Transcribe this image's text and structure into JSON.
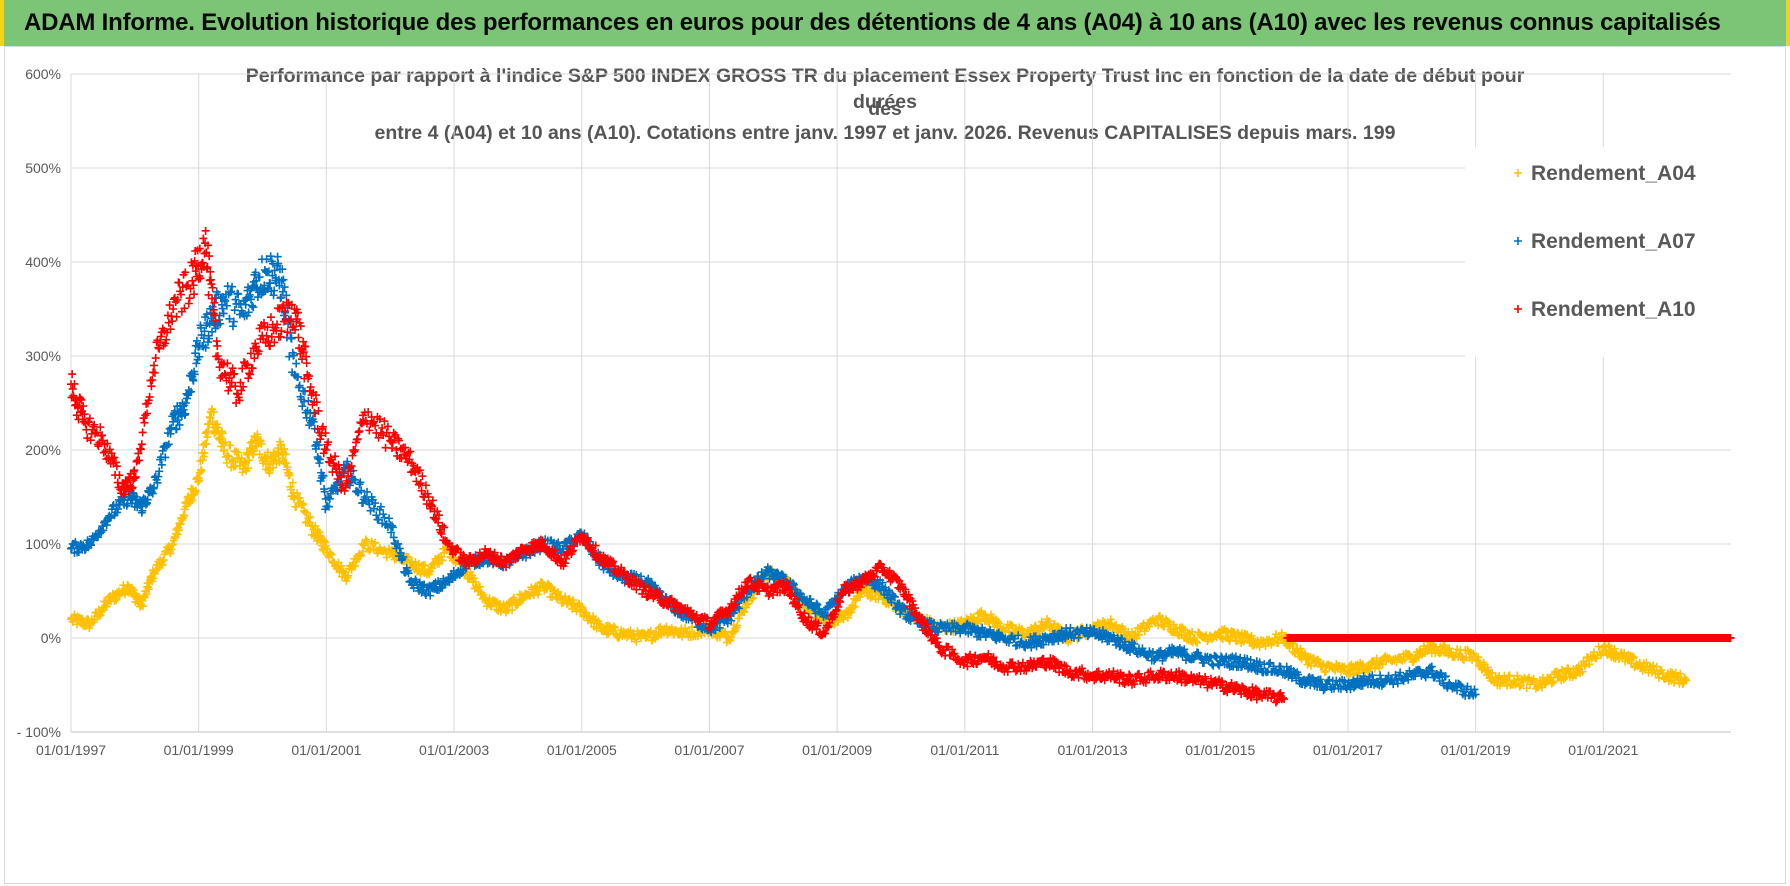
{
  "banner": {
    "text": "ADAM Informe. Evolution historique des performances en euros pour des détentions de 4 ans (A04) à 10 ans (A10) avec les revenus connus capitalisés"
  },
  "colors": {
    "banner_bg": "#7cc576",
    "banner_border": "#f2d21b",
    "A04": "#ffc000",
    "A07": "#0070c0",
    "A10": "#ff0000",
    "grid": "#d9d9d9",
    "axis_text": "#595959"
  },
  "chart_data": {
    "type": "scatter",
    "marker": "+",
    "title_lines": [
      "Performance par rapport à l'indice S&P 500 INDEX GROSS TR  du placement Essex Property Trust Inc en fonction de la date de début pour des",
      "durées",
      "entre 4 (A04) et 10 ans (A10). Cotations entre janv. 1997 et janv. 2026. Revenus CAPITALISES depuis mars. 199"
    ],
    "xlabel": "",
    "ylabel": "",
    "x_unit": "year",
    "xlim": [
      1997.0,
      2023.0
    ],
    "ylim": [
      -100,
      600
    ],
    "y_ticks": [
      -100,
      0,
      100,
      200,
      300,
      400,
      500,
      600
    ],
    "y_tick_labels": [
      "- 100%",
      "0%",
      "100%",
      "200%",
      "300%",
      "400%",
      "500%",
      "600%"
    ],
    "x_ticks": [
      1997,
      1999,
      2001,
      2003,
      2005,
      2007,
      2009,
      2011,
      2013,
      2015,
      2017,
      2019,
      2021
    ],
    "x_tick_labels": [
      "01/01/1997",
      "01/01/1999",
      "01/01/2001",
      "01/01/2003",
      "01/01/2005",
      "01/01/2007",
      "01/01/2009",
      "01/01/2011",
      "01/01/2013",
      "01/01/2015",
      "01/01/2017",
      "01/01/2019",
      "01/01/2021"
    ],
    "grid": true,
    "legend_position": "top-right",
    "series": [
      {
        "name": "Rendement_A04",
        "color": "#ffc000",
        "x": [
          1997.0,
          1997.3,
          1997.6,
          1997.9,
          1998.1,
          1998.3,
          1998.6,
          1998.8,
          1999.0,
          1999.2,
          1999.4,
          1999.7,
          1999.9,
          2000.1,
          2000.3,
          2000.5,
          2000.8,
          2001.0,
          2001.3,
          2001.6,
          2002.0,
          2002.3,
          2002.6,
          2002.9,
          2003.2,
          2003.5,
          2003.8,
          2004.1,
          2004.4,
          2004.7,
          2005.0,
          2005.3,
          2005.6,
          2006.0,
          2006.3,
          2006.6,
          2007.0,
          2007.3,
          2007.6,
          2007.9,
          2008.2,
          2008.5,
          2008.8,
          2009.1,
          2009.4,
          2009.7,
          2010.0,
          2010.3,
          2010.6,
          2011.0,
          2011.3,
          2011.6,
          2012.0,
          2012.3,
          2012.6,
          2013.0,
          2013.3,
          2013.6,
          2014.0,
          2014.3,
          2014.6,
          2015.0,
          2015.3,
          2015.6,
          2016.0,
          2016.3,
          2016.6,
          2017.0,
          2017.3,
          2017.6,
          2018.0,
          2018.3,
          2018.6,
          2019.0,
          2019.3,
          2019.6,
          2020.0,
          2020.3,
          2020.6,
          2021.0,
          2021.3,
          2021.6,
          2022.0,
          2022.3
        ],
        "y": [
          20,
          15,
          40,
          55,
          35,
          70,
          100,
          140,
          170,
          240,
          200,
          180,
          210,
          185,
          200,
          150,
          115,
          95,
          65,
          100,
          90,
          80,
          70,
          95,
          70,
          40,
          30,
          45,
          55,
          40,
          30,
          10,
          5,
          0,
          10,
          5,
          10,
          0,
          40,
          70,
          60,
          35,
          20,
          20,
          50,
          45,
          30,
          20,
          10,
          15,
          25,
          10,
          5,
          15,
          0,
          10,
          15,
          0,
          20,
          10,
          0,
          5,
          0,
          -5,
          0,
          -20,
          -30,
          -35,
          -30,
          -25,
          -20,
          -10,
          -15,
          -20,
          -45,
          -45,
          -50,
          -40,
          -35,
          -10,
          -20,
          -30,
          -40,
          -45
        ]
      },
      {
        "name": "Rendement_A07",
        "color": "#0070c0",
        "x": [
          1997.0,
          1997.3,
          1997.6,
          1997.9,
          1998.1,
          1998.3,
          1998.6,
          1998.8,
          1999.0,
          1999.2,
          1999.4,
          1999.7,
          1999.9,
          2000.1,
          2000.3,
          2000.5,
          2000.8,
          2001.0,
          2001.3,
          2001.6,
          2002.0,
          2002.3,
          2002.6,
          2002.9,
          2003.2,
          2003.5,
          2003.8,
          2004.1,
          2004.4,
          2004.7,
          2005.0,
          2005.3,
          2005.6,
          2006.0,
          2006.3,
          2006.6,
          2007.0,
          2007.3,
          2007.6,
          2007.9,
          2008.2,
          2008.5,
          2008.8,
          2009.1,
          2009.4,
          2009.7,
          2010.0,
          2010.3,
          2010.6,
          2011.0,
          2011.3,
          2011.6,
          2012.0,
          2012.3,
          2012.6,
          2013.0,
          2013.3,
          2013.6,
          2014.0,
          2014.3,
          2014.6,
          2015.0,
          2015.3,
          2015.6,
          2016.0,
          2016.3,
          2016.6,
          2017.0,
          2017.3,
          2017.6,
          2018.0,
          2018.3,
          2018.6,
          2019.0
        ],
        "y": [
          95,
          100,
          130,
          150,
          140,
          160,
          230,
          250,
          310,
          340,
          360,
          345,
          380,
          390,
          380,
          280,
          230,
          140,
          180,
          150,
          120,
          60,
          50,
          60,
          80,
          85,
          80,
          90,
          100,
          95,
          110,
          80,
          65,
          60,
          40,
          25,
          10,
          20,
          50,
          70,
          60,
          40,
          25,
          50,
          65,
          55,
          30,
          15,
          10,
          10,
          5,
          0,
          -5,
          0,
          5,
          5,
          0,
          -10,
          -20,
          -15,
          -20,
          -25,
          -25,
          -30,
          -35,
          -45,
          -50,
          -50,
          -45,
          -45,
          -40,
          -35,
          -50,
          -60
        ]
      },
      {
        "name": "Rendement_A10",
        "color": "#ff0000",
        "x": [
          1997.0,
          1997.2,
          1997.5,
          1997.8,
          1998.0,
          1998.3,
          1998.6,
          1998.9,
          1999.1,
          1999.3,
          1999.6,
          1999.9,
          2000.2,
          2000.5,
          2000.7,
          2001.0,
          2001.3,
          2001.6,
          2002.0,
          2002.3,
          2002.6,
          2002.9,
          2003.2,
          2003.5,
          2003.8,
          2004.1,
          2004.4,
          2004.7,
          2005.0,
          2005.3,
          2005.6,
          2006.0,
          2006.3,
          2006.6,
          2007.0,
          2007.3,
          2007.6,
          2007.9,
          2008.2,
          2008.5,
          2008.8,
          2009.1,
          2009.4,
          2009.7,
          2010.0,
          2010.3,
          2010.6,
          2011.0,
          2011.3,
          2011.6,
          2012.0,
          2012.3,
          2012.6,
          2013.0,
          2013.3,
          2013.6,
          2014.0,
          2014.3,
          2014.6,
          2015.0,
          2015.3,
          2015.6,
          2016.0
        ],
        "y": [
          270,
          230,
          210,
          160,
          170,
          290,
          350,
          380,
          420,
          300,
          260,
          310,
          330,
          350,
          280,
          200,
          160,
          240,
          210,
          190,
          150,
          100,
          80,
          90,
          80,
          95,
          100,
          80,
          110,
          85,
          70,
          50,
          40,
          30,
          15,
          30,
          60,
          50,
          55,
          20,
          5,
          50,
          60,
          75,
          55,
          20,
          -10,
          -25,
          -20,
          -30,
          -30,
          -25,
          -35,
          -40,
          -40,
          -45,
          -40,
          -40,
          -45,
          -50,
          -55,
          -60,
          -65
        ]
      },
      {
        "name": "Rendement_A10 (zero band)",
        "legend": false,
        "color": "#ff0000",
        "x_start": 2016.05,
        "x_end": 2023.0,
        "y": 0
      }
    ]
  }
}
